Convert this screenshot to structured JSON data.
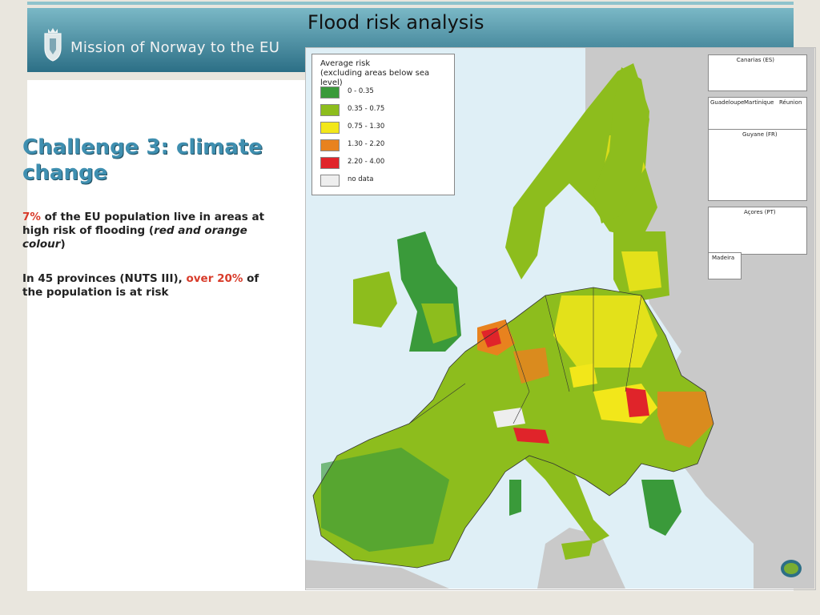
{
  "header": {
    "title": "Flood risk analysis",
    "organization": "Mission of Norway to the EU"
  },
  "left_panel": {
    "heading": "Challenge 3: climate change",
    "para1": {
      "highlight": "7%",
      "text_a": " of the EU population live in areas at high risk of flooding (",
      "italic": "red and orange colour",
      "text_b": ")"
    },
    "para2": {
      "text_a": "In 45 provinces (NUTS III), ",
      "highlight": "over 20%",
      "text_b": " of the population is at risk"
    }
  },
  "map": {
    "legend": {
      "title_line1": "Average risk",
      "title_line2": "(excluding areas below sea level)",
      "items": [
        {
          "label": "0 - 0.35",
          "color": "#3a9a3a"
        },
        {
          "label": "0.35 - 0.75",
          "color": "#8dbd1d"
        },
        {
          "label": "0.75 - 1.30",
          "color": "#f2e71a"
        },
        {
          "label": "1.30 - 2.20",
          "color": "#e8821e"
        },
        {
          "label": "2.20 - 4.00",
          "color": "#e0242a"
        },
        {
          "label": "no data",
          "color": "#eeeeee"
        }
      ]
    },
    "insets": {
      "canarias": "Canarias (ES)",
      "guadeloupe": "Guadeloupe",
      "martinique": "Martinique",
      "reunion": "Réunion",
      "guyane": "Guyane (FR)",
      "acores": "Açores (PT)",
      "madeira": "Madeira"
    }
  }
}
